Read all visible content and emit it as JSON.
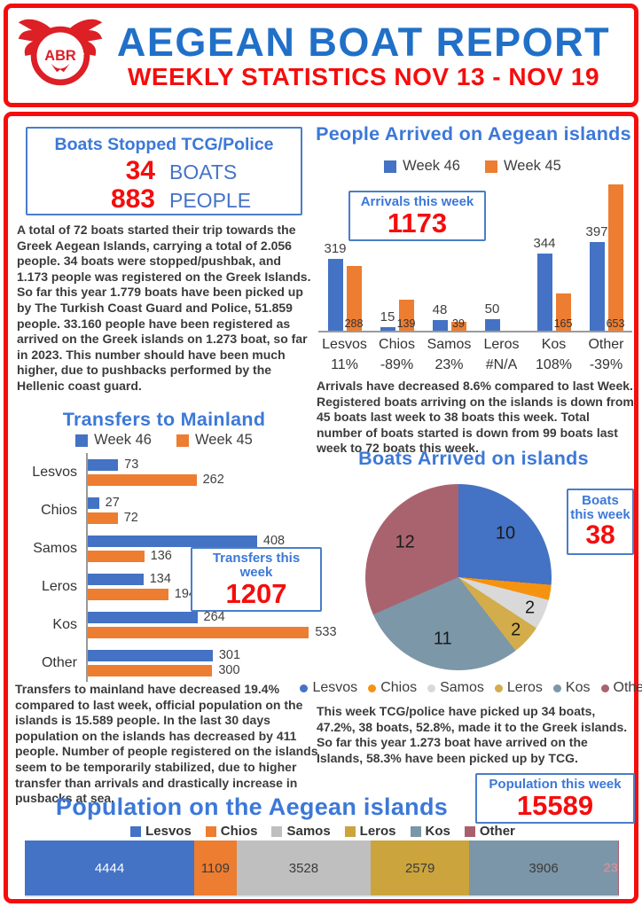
{
  "header": {
    "title": "AEGEAN BOAT REPORT",
    "subtitle": "WEEKLY STATISTICS NOV 13 - NOV 19",
    "logo": {
      "abbr": "ABR",
      "ring_text": "AEGEAN BOAT REPORT"
    }
  },
  "colors": {
    "accent_red": "#F50D0D",
    "title_blue": "#2170C8",
    "section_blue": "#3C78D8",
    "box_border_blue": "#4A7EC8",
    "series_week46": "#4472C4",
    "series_week45": "#ED7D31",
    "pie_palette": [
      "#4472C4",
      "#F59311",
      "#D9D9D9",
      "#D3AC4B",
      "#7C97A8",
      "#A9636F"
    ],
    "population_palette": [
      "#4472C4",
      "#ED7D31",
      "#BFBFBF",
      "#CCA43D",
      "#7B96A8",
      "#A8606E"
    ]
  },
  "stopped_box": {
    "title": "Boats Stopped TCG/Police",
    "rows": [
      {
        "value": "34",
        "label": "BOATS"
      },
      {
        "value": "883",
        "label": "PEOPLE"
      }
    ]
  },
  "paragraphs": {
    "intro": "A total of 72  boats started their trip towards the Greek Aegean Islands, carrying a total of 2.056 people. 34 boats were stopped/pushbak, and 1.173 people was registered on the Greek Islands. So far this year 1.779 boats have been picked up by The Turkish Coast Guard and Police, 51.859 people. 33.160 people have been registered as arrived on the Greek islands on 1.273 boat, so far in 2023. This number should have been much higher, due to pushbacks performed by the Hellenic coast guard.",
    "arrivals": "Arrivals have decreased 8.6% compared to last Week. Registered boats arriving on the islands is down from 45 boats last week to 38 boats this week. Total number of boats started is down from 99 boats last week to 72 boats this week.",
    "transfers": "Transfers to mainland have decreased 19.4% compared to last week, official population on the islands is 15.589 people. In the last 30 days population on the islands has decreased by 411 people.  Number of people registered on the islands seem to be temporarily stabilized, due to higher transfer than arrivals and drastically increase in pusbacks at sea.",
    "tcg": "This week TCG/police have picked up 34 boats, 47.2%, 38 boats, 52.8%, made it to the Greek islands. So far this year 1.273 boat have arrived on the Islands, 58.3% have been picked up by TCG."
  },
  "chart_data": [
    {
      "id": "people_arrived",
      "type": "bar",
      "title": "People Arrived on Aegean islands",
      "legend": [
        "Week 46",
        "Week 45"
      ],
      "legend_position": "top",
      "categories": [
        "Lesvos",
        "Chios",
        "Samos",
        "Leros",
        "Kos",
        "Other"
      ],
      "series": [
        {
          "name": "Week 46",
          "values": [
            319,
            15,
            48,
            50,
            344,
            397
          ]
        },
        {
          "name": "Week 45",
          "values": [
            288,
            139,
            39,
            null,
            165,
            653
          ]
        }
      ],
      "category_sublabels": [
        "11%",
        "-89%",
        "23%",
        "#N/A",
        "108%",
        "-39%"
      ],
      "ylim": [
        0,
        660
      ],
      "grid": false,
      "callout": {
        "label": "Arrivals this week",
        "value": "1173"
      }
    },
    {
      "id": "transfers_mainland",
      "type": "bar-horizontal",
      "title": "Transfers to Mainland",
      "legend": [
        "Week 46",
        "Week 45"
      ],
      "legend_position": "top",
      "categories": [
        "Lesvos",
        "Chios",
        "Samos",
        "Leros",
        "Kos",
        "Other"
      ],
      "series": [
        {
          "name": "Week 46",
          "values": [
            73,
            27,
            408,
            134,
            264,
            301
          ]
        },
        {
          "name": "Week 45",
          "values": [
            262,
            72,
            136,
            194,
            533,
            300
          ]
        }
      ],
      "xlim": [
        0,
        560
      ],
      "grid": false,
      "callout": {
        "label": "Transfers this week",
        "value": "1207"
      }
    },
    {
      "id": "boats_arrived",
      "type": "pie",
      "title": "Boats Arrived on islands",
      "labels": [
        "Lesvos",
        "Chios",
        "Samos",
        "Leros",
        "Kos",
        "Other"
      ],
      "values": [
        10,
        1,
        2,
        2,
        11,
        12
      ],
      "legend_position": "bottom",
      "callout": {
        "label": "Boats this week",
        "value": "38"
      }
    },
    {
      "id": "population",
      "type": "stacked-bar",
      "title": "Population on the Aegean islands",
      "labels": [
        "Lesvos",
        "Chios",
        "Samos",
        "Leros",
        "Kos",
        "Other"
      ],
      "values": [
        4444,
        1109,
        3528,
        2579,
        3906,
        23
      ],
      "legend_position": "top",
      "callout": {
        "label": "Population this week",
        "value": "15589"
      }
    }
  ]
}
